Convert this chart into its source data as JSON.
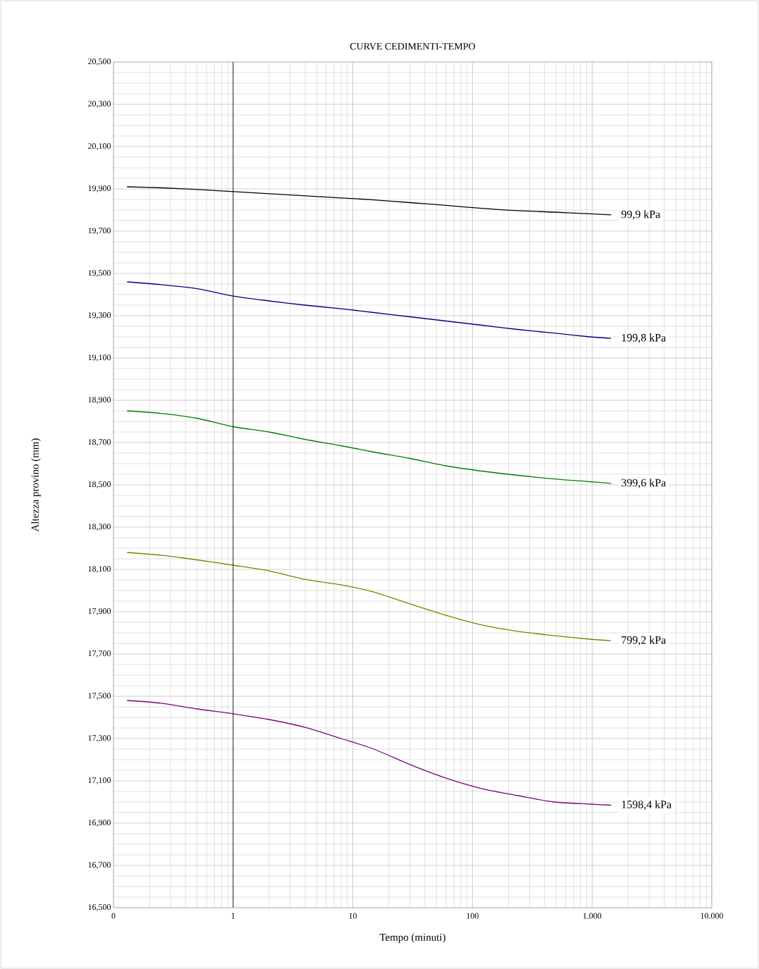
{
  "chart_data": {
    "type": "line",
    "title": "CURVE CEDIMENTI-TEMPO",
    "xlabel": "Tempo (minuti)",
    "ylabel": "Altezza provino (mm)",
    "log": "x",
    "grid": true,
    "legend": false,
    "marker": "none",
    "line_style": "solid",
    "x": [
      0.13,
      0.25,
      0.5,
      1,
      2,
      4,
      8,
      15,
      30,
      60,
      120,
      240,
      480,
      960,
      1440
    ],
    "xlim": [
      0.1,
      10000
    ],
    "xticks": [
      {
        "value": 0.1,
        "label": "0"
      },
      1,
      10,
      100,
      {
        "value": 1000,
        "label": "1.000"
      },
      {
        "value": 10000,
        "label": "10.000"
      }
    ],
    "ylim": [
      16.5,
      20.5
    ],
    "yticks": [
      {
        "value": 16.5,
        "label": "16,500"
      },
      {
        "value": 16.7,
        "label": "16,700"
      },
      {
        "value": 16.9,
        "label": "16,900"
      },
      {
        "value": 17.1,
        "label": "17,100"
      },
      {
        "value": 17.3,
        "label": "17,300"
      },
      {
        "value": 17.5,
        "label": "17,500"
      },
      {
        "value": 17.7,
        "label": "17,700"
      },
      {
        "value": 17.9,
        "label": "17,900"
      },
      {
        "value": 18.1,
        "label": "18,100"
      },
      {
        "value": 18.3,
        "label": "18,300"
      },
      {
        "value": 18.5,
        "label": "18,500"
      },
      {
        "value": 18.7,
        "label": "18,700"
      },
      {
        "value": 18.9,
        "label": "18,900"
      },
      {
        "value": 19.1,
        "label": "19,100"
      },
      {
        "value": 19.3,
        "label": "19,300"
      },
      {
        "value": 19.5,
        "label": "19,500"
      },
      {
        "value": 19.7,
        "label": "19,700"
      },
      {
        "value": 19.9,
        "label": "19,900"
      },
      {
        "value": 20.1,
        "label": "20,100"
      },
      {
        "value": 20.3,
        "label": "20,300"
      },
      {
        "value": 20.5,
        "label": "20,500"
      }
    ],
    "ref_lines": [
      {
        "axis": "x",
        "value": 1,
        "color": "#000000"
      }
    ],
    "series": [
      {
        "name": "99,9 kPa",
        "color": "#000000",
        "values": [
          19.91,
          19.905,
          19.897,
          19.887,
          19.877,
          19.867,
          19.857,
          19.848,
          19.835,
          19.822,
          19.808,
          19.797,
          19.79,
          19.782,
          19.777
        ]
      },
      {
        "name": "199,8 kPa",
        "color": "#000080",
        "values": [
          19.46,
          19.447,
          19.428,
          19.393,
          19.37,
          19.35,
          19.333,
          19.315,
          19.295,
          19.275,
          19.255,
          19.235,
          19.218,
          19.2,
          19.193
        ]
      },
      {
        "name": "399,6 kPa",
        "color": "#008000",
        "values": [
          18.85,
          18.838,
          18.815,
          18.775,
          18.75,
          18.715,
          18.685,
          18.655,
          18.625,
          18.59,
          18.565,
          18.545,
          18.528,
          18.515,
          18.507
        ]
      },
      {
        "name": "799,2 kPa",
        "color": "#808000",
        "values": [
          18.18,
          18.167,
          18.145,
          18.12,
          18.093,
          18.053,
          18.027,
          17.993,
          17.937,
          17.883,
          17.837,
          17.807,
          17.787,
          17.77,
          17.763
        ]
      },
      {
        "name": "1598,4 kPa",
        "color": "#800080",
        "values": [
          17.48,
          17.467,
          17.44,
          17.417,
          17.39,
          17.353,
          17.3,
          17.25,
          17.177,
          17.113,
          17.063,
          17.03,
          17.0,
          16.99,
          16.985
        ]
      }
    ]
  }
}
